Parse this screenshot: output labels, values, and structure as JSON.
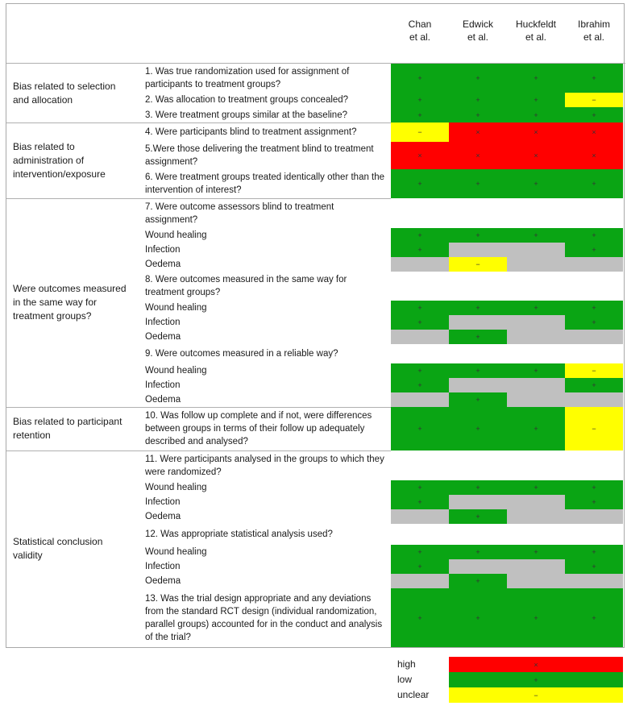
{
  "headers": [
    [
      "Chan",
      "et al."
    ],
    [
      "Edwick",
      "et al."
    ],
    [
      "Huckfeldt",
      "et al."
    ],
    [
      "Ibrahim",
      "et al."
    ]
  ],
  "categories": [
    [
      "Bias related to selection",
      "and allocation"
    ],
    [
      "Bias related to",
      "administration of",
      "intervention/exposure"
    ],
    [
      "Were outcomes measured",
      "in the same way for",
      "treatment groups?"
    ],
    [
      "Bias related to participant",
      "retention"
    ],
    [
      "Statistical conclusion",
      "validity"
    ]
  ],
  "rows": [
    {
      "text": "1. Was true randomization used for assignment of participants to treatment groups?",
      "cells": [
        "low",
        "low",
        "low",
        "low"
      ]
    },
    {
      "text": "2. Was allocation to treatment groups concealed?",
      "cells": [
        "low",
        "low",
        "low",
        "unclear"
      ]
    },
    {
      "text": "3. Were treatment groups similar at the baseline?",
      "cells": [
        "low",
        "low",
        "low",
        "low"
      ]
    },
    {
      "text": "4. Were participants blind to treatment assignment?",
      "cells": [
        "unclear",
        "high",
        "high",
        "high"
      ]
    },
    {
      "text": "5.Were those delivering the treatment blind to treatment assignment?",
      "cells": [
        "high",
        "high",
        "high",
        "high"
      ]
    },
    {
      "text": "6. Were treatment groups treated identically other than the intervention of interest?",
      "cells": [
        "low",
        "low",
        "low",
        "low"
      ]
    },
    {
      "text": "7. Were outcome assessors blind to treatment assignment?",
      "cells": []
    },
    {
      "text": "Wound healing",
      "cells": [
        "low",
        "low",
        "low",
        "low"
      ]
    },
    {
      "text": "Infection",
      "cells": [
        "low",
        "na",
        "na",
        "low"
      ]
    },
    {
      "text": "Oedema",
      "cells": [
        "na",
        "unclear",
        "na",
        "na"
      ]
    },
    {
      "text": "8. Were outcomes measured in the same way for treatment groups?",
      "cells": []
    },
    {
      "text": "Wound healing",
      "cells": [
        "low",
        "low",
        "low",
        "low"
      ]
    },
    {
      "text": "Infection",
      "cells": [
        "low",
        "na",
        "na",
        "low"
      ]
    },
    {
      "text": "Oedema",
      "cells": [
        "na",
        "low",
        "na",
        "na"
      ]
    },
    {
      "text": "9. Were outcomes measured in a reliable way?",
      "cells": []
    },
    {
      "text": "Wound healing",
      "cells": [
        "low",
        "low",
        "low",
        "unclear"
      ]
    },
    {
      "text": "Infection",
      "cells": [
        "low",
        "na",
        "na",
        "low"
      ]
    },
    {
      "text": "Oedema",
      "cells": [
        "na",
        "low",
        "na",
        "na"
      ]
    },
    {
      "text": "10. Was follow up complete and if not, were differences between groups in terms of their follow up adequately described and analysed?",
      "cells": [
        "low",
        "low",
        "low",
        "unclear"
      ]
    },
    {
      "text": "11. Were participants analysed in the groups to which they were randomized?",
      "cells": []
    },
    {
      "text": "Wound healing",
      "cells": [
        "low",
        "low",
        "low",
        "low"
      ]
    },
    {
      "text": "Infection",
      "cells": [
        "low",
        "na",
        "na",
        "low"
      ]
    },
    {
      "text": "Oedema",
      "cells": [
        "na",
        "low",
        "na",
        "na"
      ]
    },
    {
      "text": "12. Was appropriate statistical analysis used?",
      "cells": []
    },
    {
      "text": "Wound healing",
      "cells": [
        "low",
        "low",
        "low",
        "low"
      ]
    },
    {
      "text": "Infection",
      "cells": [
        "low",
        "na",
        "na",
        "low"
      ]
    },
    {
      "text": "Oedema",
      "cells": [
        "na",
        "low",
        "na",
        "na"
      ]
    },
    {
      "text": "13. Was the trial design appropriate and any deviations from the standard RCT design (individual randomization, parallel groups) accounted for in the conduct and analysis of the trial?",
      "cells": [
        "low",
        "low",
        "low",
        "low"
      ]
    }
  ],
  "symbols": {
    "high": "×",
    "low": "+",
    "unclear": "−"
  },
  "legend": [
    {
      "label": "high",
      "rating": "high"
    },
    {
      "label": "low",
      "rating": "low"
    },
    {
      "label": "unclear",
      "rating": "unclear"
    }
  ],
  "colors": {
    "high": "#ff0000",
    "low": "#0aa514",
    "unclear": "#ffff00",
    "na": "#c0c0c0"
  }
}
